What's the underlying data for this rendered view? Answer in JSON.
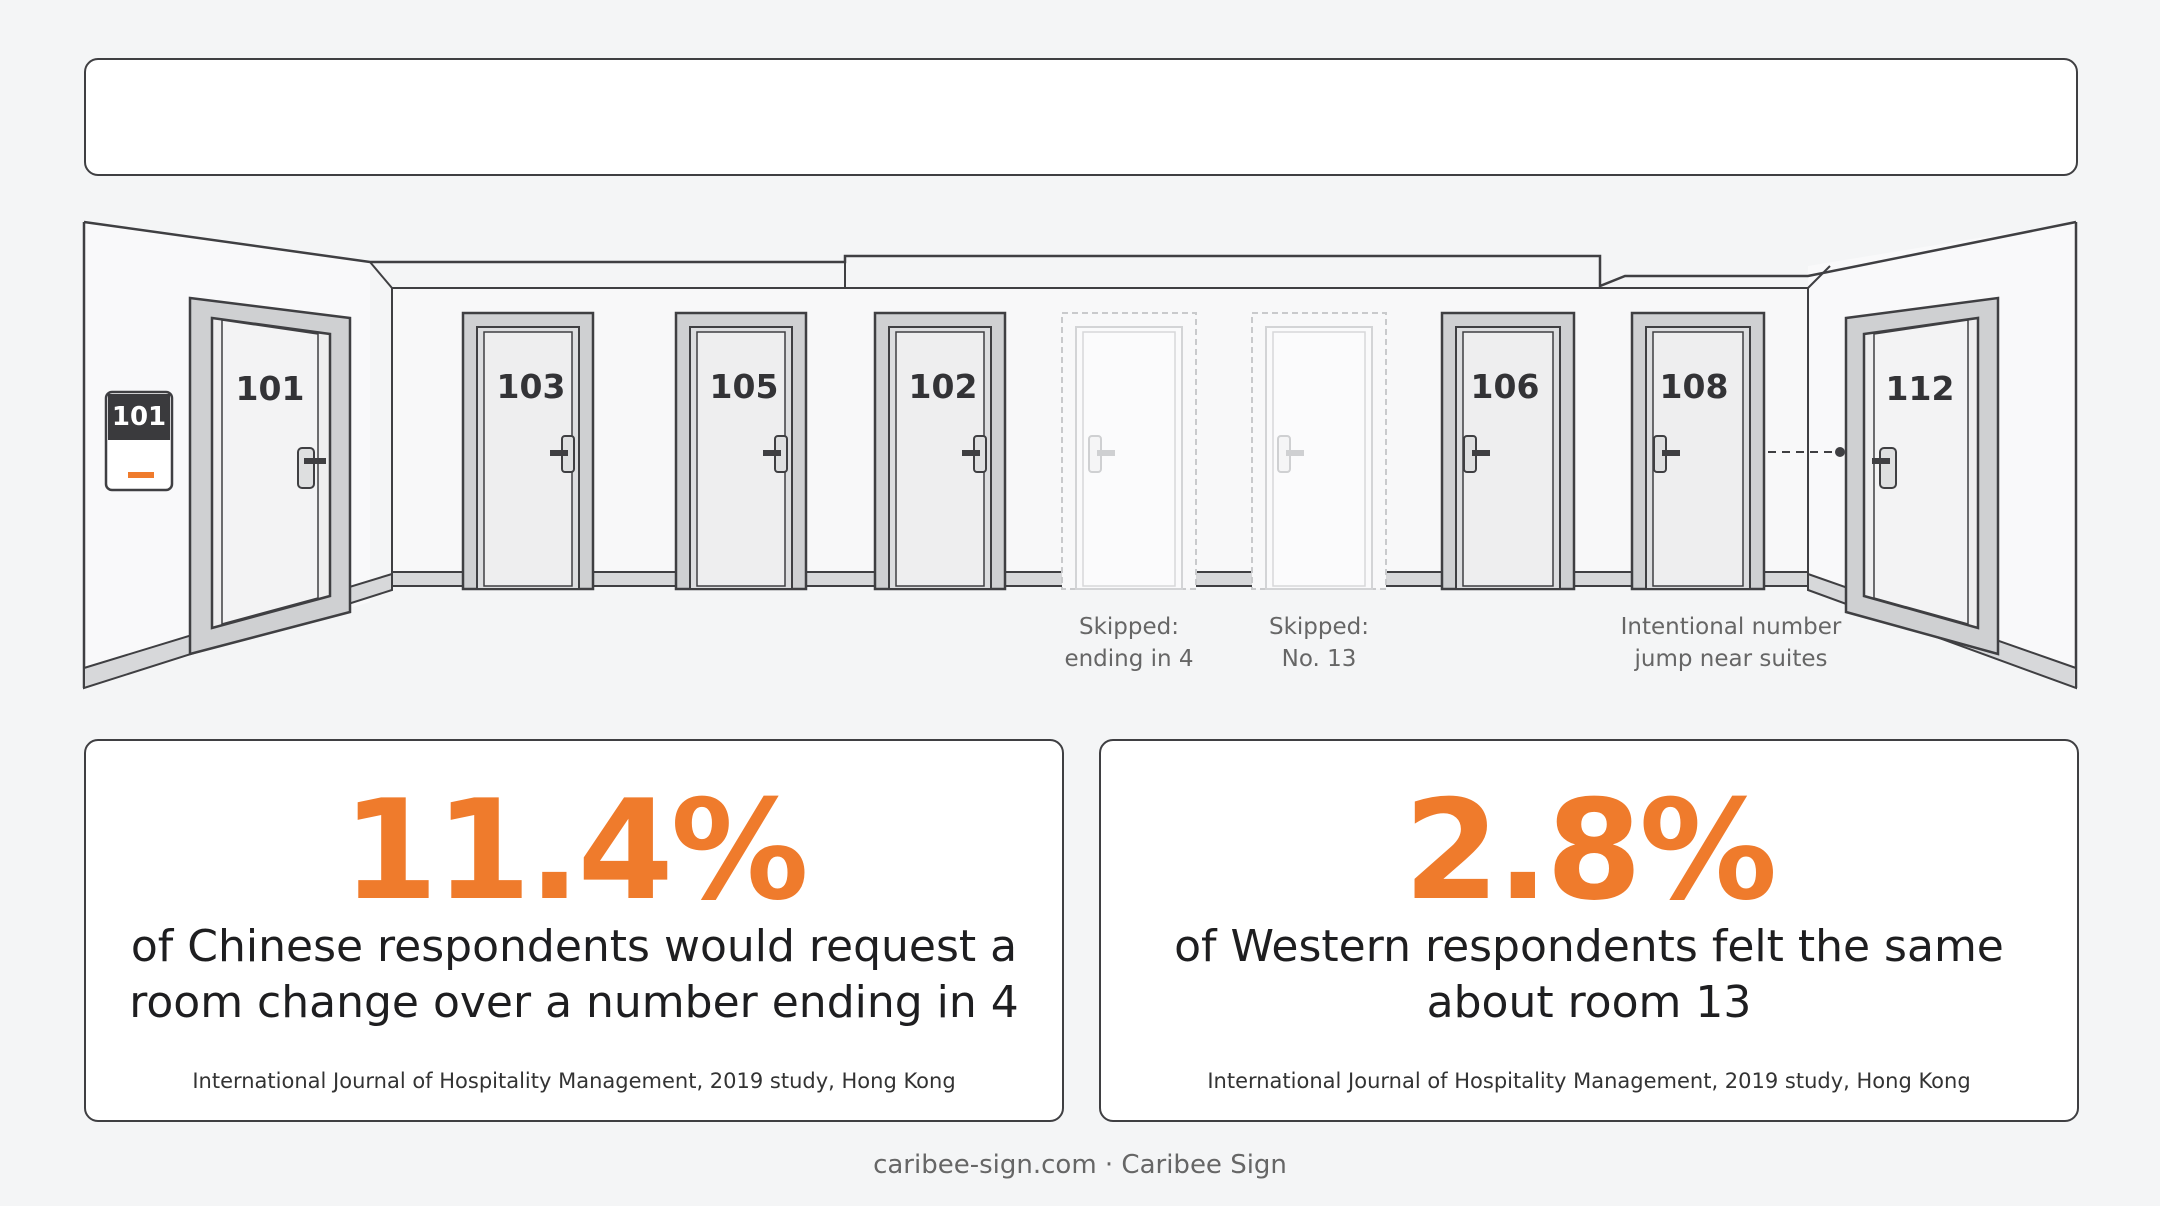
{
  "header": {
    "title": ""
  },
  "corridor": {
    "wall_plate_number": "101",
    "doors": [
      {
        "number": "101",
        "state": "open-angled-left"
      },
      {
        "number": "103",
        "state": "normal"
      },
      {
        "number": "105",
        "state": "normal"
      },
      {
        "number": "102",
        "state": "normal"
      },
      {
        "number": "",
        "state": "skipped"
      },
      {
        "number": "",
        "state": "skipped"
      },
      {
        "number": "106",
        "state": "normal"
      },
      {
        "number": "108",
        "state": "normal"
      },
      {
        "number": "112",
        "state": "open-angled-right"
      }
    ],
    "captions": {
      "skipped_4_line1": "Skipped:",
      "skipped_4_line2": "ending in 4",
      "skipped_13_line1": "Skipped:",
      "skipped_13_line2": "No. 13",
      "jump_line1": "Intentional number",
      "jump_line2": "jump near suites"
    }
  },
  "stats": [
    {
      "value": "11.4%",
      "desc_line1": "of Chinese respondents would request a",
      "desc_line2": "room change over a number ending in 4",
      "source": "International Journal of Hospitality Management, 2019 study, Hong Kong"
    },
    {
      "value": "2.8%",
      "desc_line1": "of Western respondents felt the same",
      "desc_line2": "about room 13",
      "source": "International Journal of Hospitality Management, 2019 study, Hong Kong"
    }
  ],
  "footer": {
    "text": "caribee-sign.com · Caribee Sign"
  },
  "colors": {
    "accent": "#ef7b2c",
    "ink": "#3f3f42",
    "background": "#f4f5f6"
  }
}
